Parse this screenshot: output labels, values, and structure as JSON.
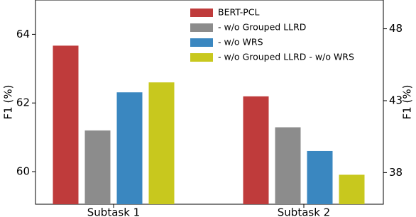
{
  "chart_data": {
    "type": "bar",
    "categories": [
      "Subtask 1",
      "Subtask 2"
    ],
    "category_axes": [
      "y",
      "y2"
    ],
    "y_label": "F1 (%)",
    "y2_label": "F1 (%)",
    "ylim": [
      59.05,
      65
    ],
    "yticks": [
      60,
      62,
      64
    ],
    "y2lim": [
      35.8,
      50
    ],
    "y2ticks": [
      38,
      43,
      48
    ],
    "legend": "upper center",
    "series": [
      {
        "name": "BERT-PCL",
        "color": "#bf3b3b",
        "values": [
          63.67,
          43.3
        ]
      },
      {
        "name": "- w/o Grouped LLRD",
        "color": "#8c8c8c",
        "values": [
          61.2,
          41.15
        ]
      },
      {
        "name": "- w/o WRS",
        "color": "#3a87c0",
        "values": [
          62.31,
          39.5
        ]
      },
      {
        "name": "- w/o Grouped LLRD - w/o WRS",
        "color": "#c8c81e",
        "values": [
          62.6,
          37.85
        ]
      }
    ]
  }
}
